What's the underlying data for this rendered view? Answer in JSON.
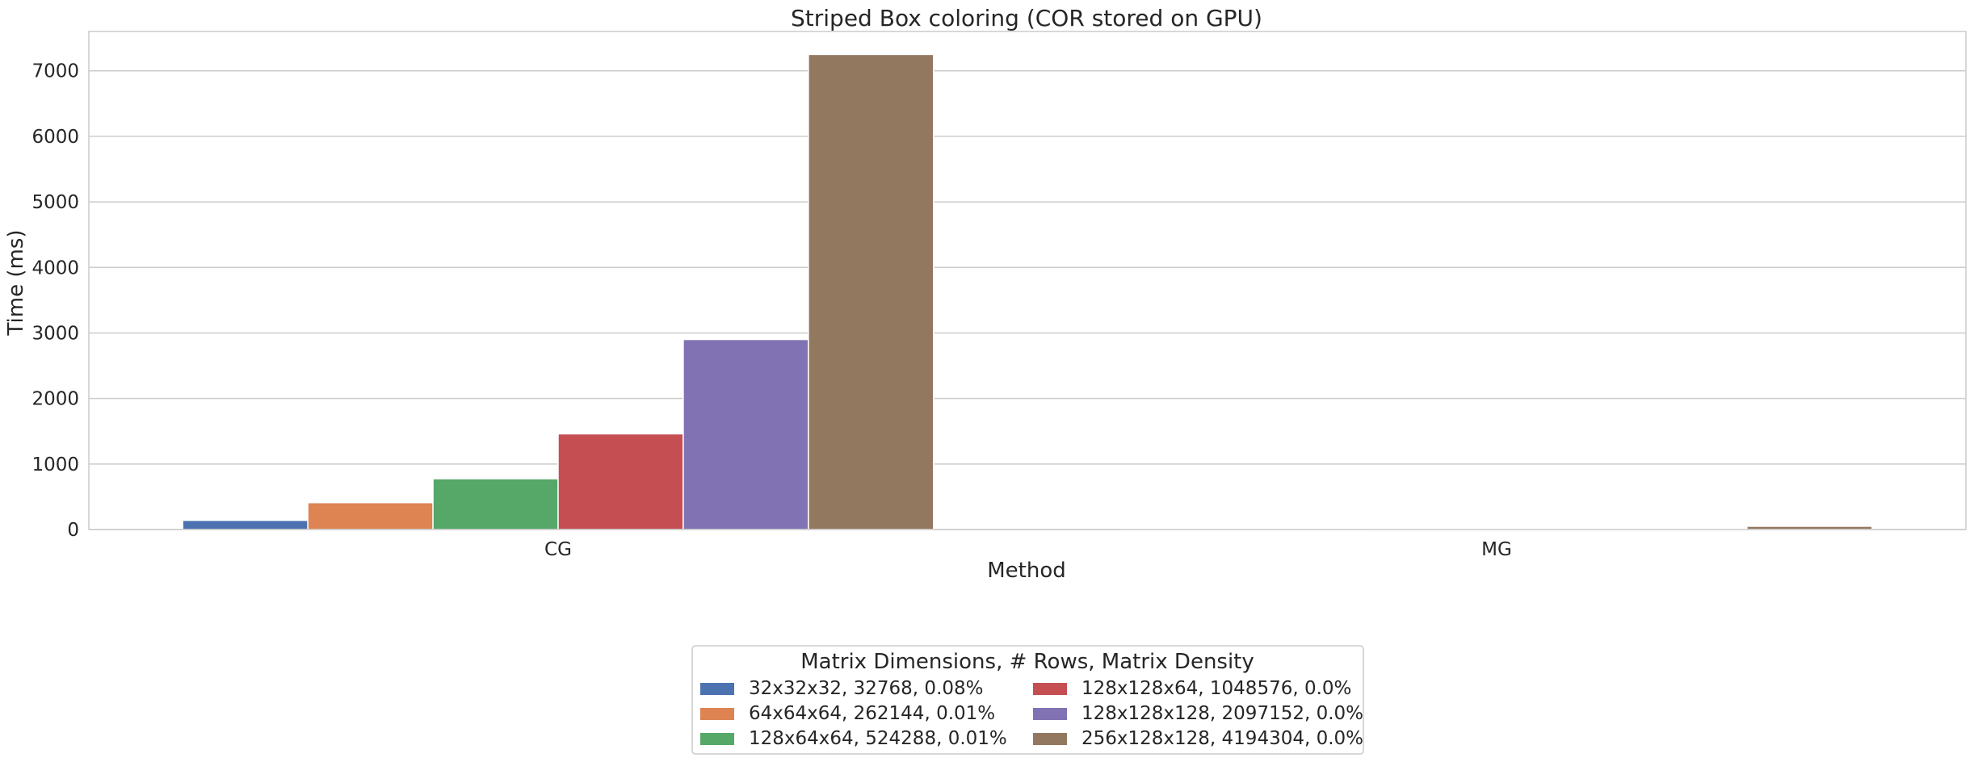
{
  "chart_data": {
    "type": "bar",
    "title": "Striped Box coloring (COR stored on GPU)",
    "xlabel": "Method",
    "ylabel": "Time (ms)",
    "categories": [
      "CG",
      "MG"
    ],
    "ylim": [
      0,
      7600
    ],
    "yticks": [
      0,
      1000,
      2000,
      3000,
      4000,
      5000,
      6000,
      7000
    ],
    "grid": true,
    "legend": {
      "title": "Matrix Dimensions, # Rows, Matrix Density",
      "placement": "bottom-center",
      "columns": 2
    },
    "series": [
      {
        "name": "32x32x32, 32768, 0.08%",
        "color": "#4c72b0",
        "values": [
          140,
          1
        ]
      },
      {
        "name": "64x64x64, 262144, 0.01%",
        "color": "#dd8452",
        "values": [
          410,
          2
        ]
      },
      {
        "name": "128x64x64, 524288, 0.01%",
        "color": "#55a868",
        "values": [
          775,
          4
        ]
      },
      {
        "name": "128x128x64, 1048576, 0.0%",
        "color": "#c44e52",
        "values": [
          1460,
          8
        ]
      },
      {
        "name": "128x128x128, 2097152, 0.0%",
        "color": "#8172b3",
        "values": [
          2900,
          16
        ]
      },
      {
        "name": "256x128x128, 4194304, 0.0%",
        "color": "#937860",
        "values": [
          7250,
          50
        ]
      }
    ]
  }
}
